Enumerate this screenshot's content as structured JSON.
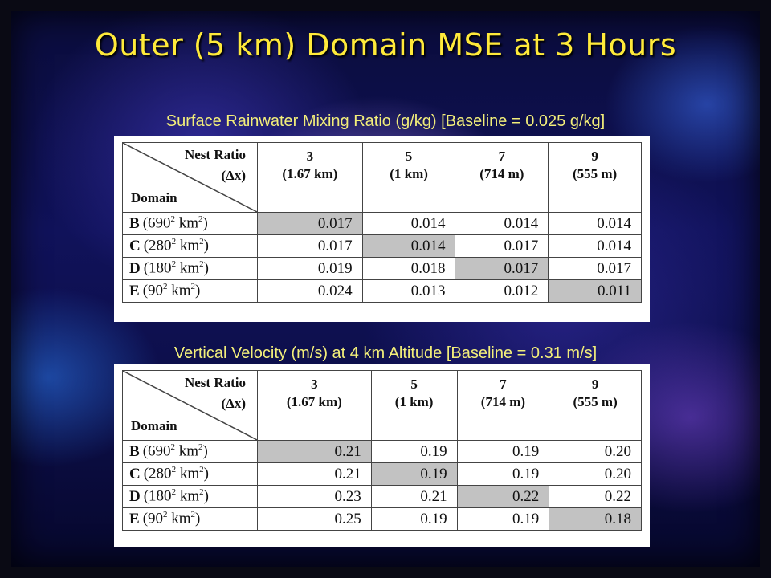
{
  "title": "Outer (5 km) Domain MSE at 3 Hours",
  "tables": [
    {
      "caption": "Surface Rainwater Mixing Ratio (g/kg) [Baseline = 0.025 g/kg]",
      "header": {
        "nest_label": "Nest Ratio",
        "dx_label": "(Δx)",
        "domain_label": "Domain",
        "columns": [
          {
            "ratio": "3",
            "dx": "(1.67 km)"
          },
          {
            "ratio": "5",
            "dx": "(1 km)"
          },
          {
            "ratio": "7",
            "dx": "(714 m)"
          },
          {
            "ratio": "9",
            "dx": "(555 m)"
          }
        ]
      },
      "rows": [
        {
          "letter": "B",
          "size": "(690",
          "exp": "2",
          "unit": " km",
          "unit_exp": "2",
          "close": ")",
          "values": [
            "0.017",
            "0.014",
            "0.014",
            "0.014"
          ],
          "shaded_col": 0
        },
        {
          "letter": "C",
          "size": "(280",
          "exp": "2",
          "unit": " km",
          "unit_exp": "2",
          "close": ")",
          "values": [
            "0.017",
            "0.014",
            "0.017",
            "0.014"
          ],
          "shaded_col": 1
        },
        {
          "letter": "D",
          "size": "(180",
          "exp": "2",
          "unit": " km",
          "unit_exp": "2",
          "close": ")",
          "values": [
            "0.019",
            "0.018",
            "0.017",
            "0.017"
          ],
          "shaded_col": 2
        },
        {
          "letter": "E",
          "size": "(90",
          "exp": "2",
          "unit": " km",
          "unit_exp": "2",
          "close": ")",
          "values": [
            "0.024",
            "0.013",
            "0.012",
            "0.011"
          ],
          "shaded_col": 3
        }
      ]
    },
    {
      "caption": "Vertical Velocity (m/s) at 4 km Altitude [Baseline = 0.31 m/s]",
      "header": {
        "nest_label": "Nest Ratio",
        "dx_label": "(Δx)",
        "domain_label": "Domain",
        "columns": [
          {
            "ratio": "3",
            "dx": "(1.67 km)"
          },
          {
            "ratio": "5",
            "dx": "(1 km)"
          },
          {
            "ratio": "7",
            "dx": "(714 m)"
          },
          {
            "ratio": "9",
            "dx": "(555 m)"
          }
        ]
      },
      "rows": [
        {
          "letter": "B",
          "size": "(690",
          "exp": "2",
          "unit": " km",
          "unit_exp": "2",
          "close": ")",
          "values": [
            "0.21",
            "0.19",
            "0.19",
            "0.20"
          ],
          "shaded_col": 0
        },
        {
          "letter": "C",
          "size": "(280",
          "exp": "2",
          "unit": " km",
          "unit_exp": "2",
          "close": ")",
          "values": [
            "0.21",
            "0.19",
            "0.19",
            "0.20"
          ],
          "shaded_col": 1
        },
        {
          "letter": "D",
          "size": "(180",
          "exp": "2",
          "unit": " km",
          "unit_exp": "2",
          "close": ")",
          "values": [
            "0.23",
            "0.21",
            "0.22",
            "0.22"
          ],
          "shaded_col": 2
        },
        {
          "letter": "E",
          "size": "(90",
          "exp": "2",
          "unit": " km",
          "unit_exp": "2",
          "close": ")",
          "values": [
            "0.25",
            "0.19",
            "0.19",
            "0.18"
          ],
          "shaded_col": 3
        }
      ]
    }
  ],
  "colors": {
    "title": "#ffea3a",
    "caption": "#f2ee7a",
    "shade": "#c2c2c2"
  }
}
